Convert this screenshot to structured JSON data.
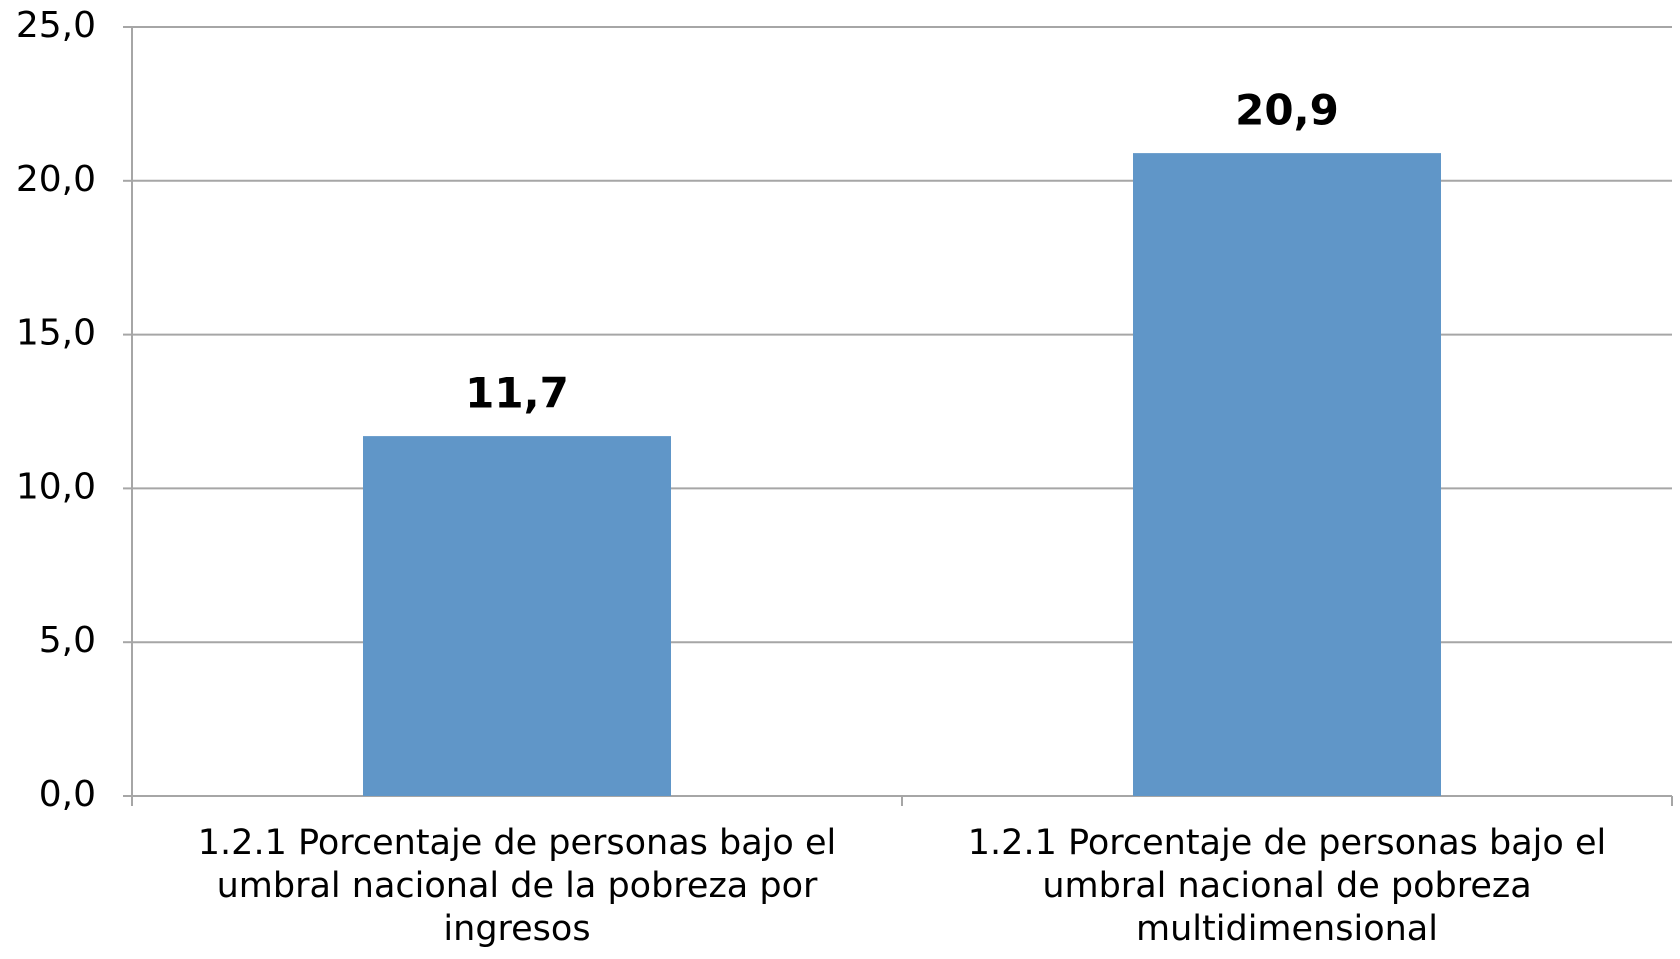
{
  "chart_data": {
    "type": "bar",
    "categories": [
      "1.2.1 Porcentaje de personas bajo el umbral nacional de la pobreza por ingresos",
      "1.2.1 Porcentaje de personas bajo el umbral nacional de pobreza multidimensional"
    ],
    "values": [
      11.7,
      20.9
    ],
    "value_labels": [
      "11,7",
      "20,9"
    ],
    "color": "#6096c8",
    "ylim": [
      0,
      25
    ],
    "yticks": [
      {
        "value": 0,
        "label": "0,0"
      },
      {
        "value": 5,
        "label": "5,0"
      },
      {
        "value": 10,
        "label": "10,0"
      },
      {
        "value": 15,
        "label": "15,0"
      },
      {
        "value": 20,
        "label": "20,0"
      },
      {
        "value": 25,
        "label": "25,0"
      }
    ],
    "grid": true
  }
}
